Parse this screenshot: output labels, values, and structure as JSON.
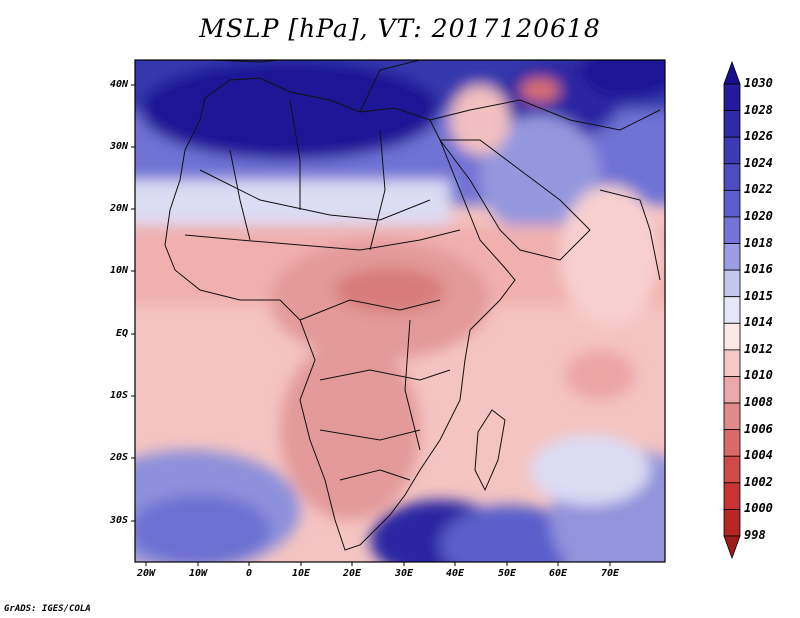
{
  "title": "MSLP [hPa], VT: 2017120618",
  "credit": "GrADS: IGES/COLA",
  "y_labels": [
    "40N",
    "30N",
    "20N",
    "10N",
    "EQ",
    "10S",
    "20S",
    "30S"
  ],
  "x_labels": [
    "20W",
    "10W",
    "0",
    "10E",
    "20E",
    "30E",
    "40E",
    "50E",
    "60E",
    "70E"
  ],
  "colorbar": {
    "levels": [
      "1030",
      "1028",
      "1026",
      "1024",
      "1022",
      "1020",
      "1018",
      "1016",
      "1015",
      "1014",
      "1012",
      "1010",
      "1008",
      "1006",
      "1004",
      "1002",
      "1000",
      "998"
    ],
    "colors": [
      "#1a0f8f",
      "#231b9c",
      "#2e2aa8",
      "#3b3bb4",
      "#4a4cc0",
      "#5a5ecb",
      "#7275d6",
      "#9a9de3",
      "#c4c6ef",
      "#e5e6f7",
      "#fce8e8",
      "#f5c8c8",
      "#eca8a8",
      "#e08a8a",
      "#d86a6a",
      "#d04a4a",
      "#c83434",
      "#b82525",
      "#9e1b1b"
    ]
  }
}
